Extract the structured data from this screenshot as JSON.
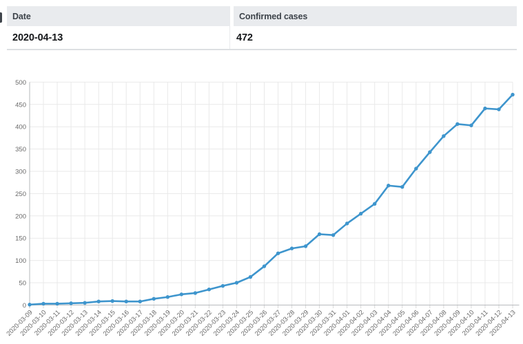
{
  "table": {
    "headers": [
      "Date",
      "Confirmed cases"
    ],
    "rows": [
      {
        "date": "2020-04-13",
        "cases": "472"
      }
    ]
  },
  "chart_data": {
    "type": "line",
    "title": "",
    "xlabel": "",
    "ylabel": "",
    "x": [
      "2020-03-09",
      "2020-03-10",
      "2020-03-11",
      "2020-03-12",
      "2020-03-13",
      "2020-03-14",
      "2020-03-15",
      "2020-03-16",
      "2020-03-17",
      "2020-03-18",
      "2020-03-19",
      "2020-03-20",
      "2020-03-21",
      "2020-03-22",
      "2020-03-23",
      "2020-03-24",
      "2020-03-25",
      "2020-03-26",
      "2020-03-27",
      "2020-03-28",
      "2020-03-29",
      "2020-03-30",
      "2020-03-31",
      "2020-04-01",
      "2020-04-02",
      "2020-04-03",
      "2020-04-04",
      "2020-04-05",
      "2020-04-06",
      "2020-04-07",
      "2020-04-08",
      "2020-04-09",
      "2020-04-10",
      "2020-04-11",
      "2020-04-12",
      "2020-04-13"
    ],
    "series": [
      {
        "name": "Confirmed cases",
        "values": [
          1,
          3,
          3,
          4,
          5,
          8,
          9,
          8,
          8,
          14,
          18,
          24,
          27,
          35,
          43,
          50,
          63,
          87,
          116,
          127,
          132,
          159,
          157,
          183,
          205,
          227,
          268,
          265,
          306,
          343,
          379,
          406,
          403,
          441,
          439,
          472
        ]
      }
    ],
    "ylim": [
      0,
      500
    ],
    "yticks": [
      0,
      50,
      100,
      150,
      200,
      250,
      300,
      350,
      400,
      450,
      500
    ],
    "grid": true,
    "legend_position": "none",
    "x_label_rotation": -45,
    "line_color": "#3e95cd",
    "point_radius": 2.7,
    "line_width": 2.6
  },
  "colors": {
    "accent_blue": "#3e95cd",
    "table_header_bg": "#e9ebee",
    "table_header_text": "#3d434a",
    "table_row_text": "#15171a",
    "table_border": "#dcdfe2",
    "grid_line": "#e9e9e9",
    "axis_line": "#b4b8bb",
    "tick_text": "#696969"
  }
}
